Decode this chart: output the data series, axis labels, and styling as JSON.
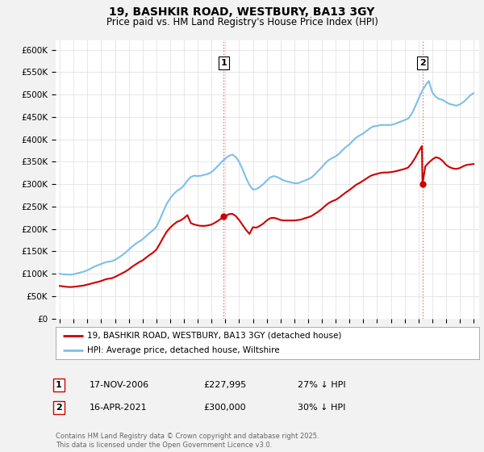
{
  "title": "19, BASHKIR ROAD, WESTBURY, BA13 3GY",
  "subtitle": "Price paid vs. HM Land Registry's House Price Index (HPI)",
  "background_color": "#f2f2f2",
  "plot_bg_color": "#ffffff",
  "ylim": [
    0,
    620000
  ],
  "yticks": [
    0,
    50000,
    100000,
    150000,
    200000,
    250000,
    300000,
    350000,
    400000,
    450000,
    500000,
    550000,
    600000
  ],
  "ytick_labels": [
    "£0",
    "£50K",
    "£100K",
    "£150K",
    "£200K",
    "£250K",
    "£300K",
    "£350K",
    "£400K",
    "£450K",
    "£500K",
    "£550K",
    "£600K"
  ],
  "sale1": {
    "date_num": 2006.88,
    "price": 227995,
    "label": "1",
    "date_str": "17-NOV-2006",
    "hpi_pct": "27% ↓ HPI"
  },
  "sale2": {
    "date_num": 2021.29,
    "price": 300000,
    "label": "2",
    "date_str": "16-APR-2021",
    "hpi_pct": "30% ↓ HPI"
  },
  "hpi_color": "#7dbfe8",
  "price_color": "#cc0000",
  "vline_color": "#e87070",
  "legend_label_price": "19, BASHKIR ROAD, WESTBURY, BA13 3GY (detached house)",
  "legend_label_hpi": "HPI: Average price, detached house, Wiltshire",
  "footnote": "Contains HM Land Registry data © Crown copyright and database right 2025.\nThis data is licensed under the Open Government Licence v3.0.",
  "hpi_data": [
    [
      1995.0,
      100000
    ],
    [
      1995.25,
      99000
    ],
    [
      1995.5,
      98500
    ],
    [
      1995.75,
      98000
    ],
    [
      1996.0,
      99000
    ],
    [
      1996.25,
      101000
    ],
    [
      1996.5,
      103000
    ],
    [
      1996.75,
      105000
    ],
    [
      1997.0,
      108000
    ],
    [
      1997.25,
      112000
    ],
    [
      1997.5,
      116000
    ],
    [
      1997.75,
      119000
    ],
    [
      1998.0,
      122000
    ],
    [
      1998.25,
      125000
    ],
    [
      1998.5,
      127000
    ],
    [
      1998.75,
      128000
    ],
    [
      1999.0,
      131000
    ],
    [
      1999.25,
      136000
    ],
    [
      1999.5,
      141000
    ],
    [
      1999.75,
      147000
    ],
    [
      2000.0,
      154000
    ],
    [
      2000.25,
      161000
    ],
    [
      2000.5,
      167000
    ],
    [
      2000.75,
      172000
    ],
    [
      2001.0,
      177000
    ],
    [
      2001.25,
      184000
    ],
    [
      2001.5,
      191000
    ],
    [
      2001.75,
      197000
    ],
    [
      2002.0,
      205000
    ],
    [
      2002.25,
      221000
    ],
    [
      2002.5,
      239000
    ],
    [
      2002.75,
      256000
    ],
    [
      2003.0,
      268000
    ],
    [
      2003.25,
      278000
    ],
    [
      2003.5,
      285000
    ],
    [
      2003.75,
      290000
    ],
    [
      2004.0,
      297000
    ],
    [
      2004.25,
      308000
    ],
    [
      2004.5,
      316000
    ],
    [
      2004.75,
      319000
    ],
    [
      2005.0,
      318000
    ],
    [
      2005.25,
      319000
    ],
    [
      2005.5,
      321000
    ],
    [
      2005.75,
      323000
    ],
    [
      2006.0,
      327000
    ],
    [
      2006.25,
      334000
    ],
    [
      2006.5,
      342000
    ],
    [
      2006.75,
      350000
    ],
    [
      2007.0,
      357000
    ],
    [
      2007.25,
      363000
    ],
    [
      2007.5,
      366000
    ],
    [
      2007.75,
      361000
    ],
    [
      2008.0,
      350000
    ],
    [
      2008.25,
      333000
    ],
    [
      2008.5,
      314000
    ],
    [
      2008.75,
      298000
    ],
    [
      2009.0,
      288000
    ],
    [
      2009.25,
      289000
    ],
    [
      2009.5,
      294000
    ],
    [
      2009.75,
      300000
    ],
    [
      2010.0,
      308000
    ],
    [
      2010.25,
      315000
    ],
    [
      2010.5,
      318000
    ],
    [
      2010.75,
      316000
    ],
    [
      2011.0,
      312000
    ],
    [
      2011.25,
      308000
    ],
    [
      2011.5,
      306000
    ],
    [
      2011.75,
      304000
    ],
    [
      2012.0,
      302000
    ],
    [
      2012.25,
      302000
    ],
    [
      2012.5,
      305000
    ],
    [
      2012.75,
      308000
    ],
    [
      2013.0,
      311000
    ],
    [
      2013.25,
      315000
    ],
    [
      2013.5,
      322000
    ],
    [
      2013.75,
      330000
    ],
    [
      2014.0,
      338000
    ],
    [
      2014.25,
      347000
    ],
    [
      2014.5,
      354000
    ],
    [
      2014.75,
      358000
    ],
    [
      2015.0,
      362000
    ],
    [
      2015.25,
      368000
    ],
    [
      2015.5,
      376000
    ],
    [
      2015.75,
      383000
    ],
    [
      2016.0,
      389000
    ],
    [
      2016.25,
      397000
    ],
    [
      2016.5,
      404000
    ],
    [
      2016.75,
      409000
    ],
    [
      2017.0,
      413000
    ],
    [
      2017.25,
      419000
    ],
    [
      2017.5,
      425000
    ],
    [
      2017.75,
      429000
    ],
    [
      2018.0,
      430000
    ],
    [
      2018.25,
      432000
    ],
    [
      2018.5,
      432000
    ],
    [
      2018.75,
      432000
    ],
    [
      2019.0,
      432000
    ],
    [
      2019.25,
      434000
    ],
    [
      2019.5,
      437000
    ],
    [
      2019.75,
      440000
    ],
    [
      2020.0,
      443000
    ],
    [
      2020.25,
      446000
    ],
    [
      2020.5,
      456000
    ],
    [
      2020.75,
      472000
    ],
    [
      2021.0,
      490000
    ],
    [
      2021.25,
      507000
    ],
    [
      2021.5,
      520000
    ],
    [
      2021.75,
      530000
    ],
    [
      2022.0,
      505000
    ],
    [
      2022.25,
      495000
    ],
    [
      2022.5,
      490000
    ],
    [
      2022.75,
      488000
    ],
    [
      2023.0,
      483000
    ],
    [
      2023.25,
      479000
    ],
    [
      2023.5,
      477000
    ],
    [
      2023.75,
      475000
    ],
    [
      2024.0,
      478000
    ],
    [
      2024.25,
      483000
    ],
    [
      2024.5,
      490000
    ],
    [
      2024.75,
      498000
    ],
    [
      2025.0,
      503000
    ]
  ],
  "price_data": [
    [
      1995.0,
      73000
    ],
    [
      1995.25,
      72000
    ],
    [
      1995.5,
      71000
    ],
    [
      1995.75,
      70500
    ],
    [
      1996.0,
      71000
    ],
    [
      1996.25,
      72000
    ],
    [
      1996.5,
      73000
    ],
    [
      1996.75,
      74000
    ],
    [
      1997.0,
      76000
    ],
    [
      1997.25,
      78000
    ],
    [
      1997.5,
      80000
    ],
    [
      1997.75,
      82000
    ],
    [
      1998.0,
      84000
    ],
    [
      1998.25,
      87000
    ],
    [
      1998.5,
      89000
    ],
    [
      1998.75,
      90000
    ],
    [
      1999.0,
      93000
    ],
    [
      1999.25,
      97000
    ],
    [
      1999.5,
      101000
    ],
    [
      1999.75,
      105000
    ],
    [
      2000.0,
      110000
    ],
    [
      2000.25,
      116000
    ],
    [
      2000.5,
      121000
    ],
    [
      2000.75,
      126000
    ],
    [
      2001.0,
      130000
    ],
    [
      2001.25,
      136000
    ],
    [
      2001.5,
      142000
    ],
    [
      2001.75,
      147000
    ],
    [
      2002.0,
      154000
    ],
    [
      2002.25,
      167000
    ],
    [
      2002.5,
      181000
    ],
    [
      2002.75,
      194000
    ],
    [
      2003.0,
      203000
    ],
    [
      2003.25,
      210000
    ],
    [
      2003.5,
      216000
    ],
    [
      2003.75,
      219000
    ],
    [
      2004.0,
      224000
    ],
    [
      2004.25,
      231000
    ],
    [
      2004.5,
      213000
    ],
    [
      2004.75,
      210000
    ],
    [
      2005.0,
      208000
    ],
    [
      2005.25,
      207000
    ],
    [
      2005.5,
      207000
    ],
    [
      2005.75,
      208000
    ],
    [
      2006.0,
      210000
    ],
    [
      2006.25,
      214000
    ],
    [
      2006.5,
      219000
    ],
    [
      2006.75,
      224000
    ],
    [
      2006.88,
      227995
    ],
    [
      2007.0,
      228000
    ],
    [
      2007.25,
      233000
    ],
    [
      2007.5,
      234000
    ],
    [
      2007.75,
      229000
    ],
    [
      2008.0,
      220000
    ],
    [
      2008.25,
      209000
    ],
    [
      2008.5,
      198000
    ],
    [
      2008.75,
      189000
    ],
    [
      2009.0,
      204000
    ],
    [
      2009.25,
      203000
    ],
    [
      2009.5,
      207000
    ],
    [
      2009.75,
      212000
    ],
    [
      2010.0,
      219000
    ],
    [
      2010.25,
      224000
    ],
    [
      2010.5,
      225000
    ],
    [
      2010.75,
      223000
    ],
    [
      2011.0,
      220000
    ],
    [
      2011.25,
      219000
    ],
    [
      2011.5,
      219000
    ],
    [
      2011.75,
      219000
    ],
    [
      2012.0,
      219000
    ],
    [
      2012.25,
      220000
    ],
    [
      2012.5,
      221000
    ],
    [
      2012.75,
      224000
    ],
    [
      2013.0,
      226000
    ],
    [
      2013.25,
      229000
    ],
    [
      2013.5,
      234000
    ],
    [
      2013.75,
      239000
    ],
    [
      2014.0,
      245000
    ],
    [
      2014.25,
      252000
    ],
    [
      2014.5,
      258000
    ],
    [
      2014.75,
      262000
    ],
    [
      2015.0,
      265000
    ],
    [
      2015.25,
      270000
    ],
    [
      2015.5,
      276000
    ],
    [
      2015.75,
      282000
    ],
    [
      2016.0,
      287000
    ],
    [
      2016.25,
      293000
    ],
    [
      2016.5,
      299000
    ],
    [
      2016.75,
      303000
    ],
    [
      2017.0,
      308000
    ],
    [
      2017.25,
      313000
    ],
    [
      2017.5,
      318000
    ],
    [
      2017.75,
      321000
    ],
    [
      2018.0,
      323000
    ],
    [
      2018.25,
      325000
    ],
    [
      2018.5,
      326000
    ],
    [
      2018.75,
      326000
    ],
    [
      2019.0,
      327000
    ],
    [
      2019.25,
      328000
    ],
    [
      2019.5,
      330000
    ],
    [
      2019.75,
      332000
    ],
    [
      2020.0,
      334000
    ],
    [
      2020.25,
      337000
    ],
    [
      2020.5,
      346000
    ],
    [
      2020.75,
      358000
    ],
    [
      2021.0,
      372000
    ],
    [
      2021.25,
      385000
    ],
    [
      2021.29,
      300000
    ],
    [
      2021.5,
      340000
    ],
    [
      2021.75,
      348000
    ],
    [
      2022.0,
      355000
    ],
    [
      2022.25,
      360000
    ],
    [
      2022.5,
      358000
    ],
    [
      2022.75,
      352000
    ],
    [
      2023.0,
      343000
    ],
    [
      2023.25,
      338000
    ],
    [
      2023.5,
      335000
    ],
    [
      2023.75,
      334000
    ],
    [
      2024.0,
      336000
    ],
    [
      2024.25,
      340000
    ],
    [
      2024.5,
      343000
    ],
    [
      2024.75,
      344000
    ],
    [
      2025.0,
      345000
    ]
  ]
}
